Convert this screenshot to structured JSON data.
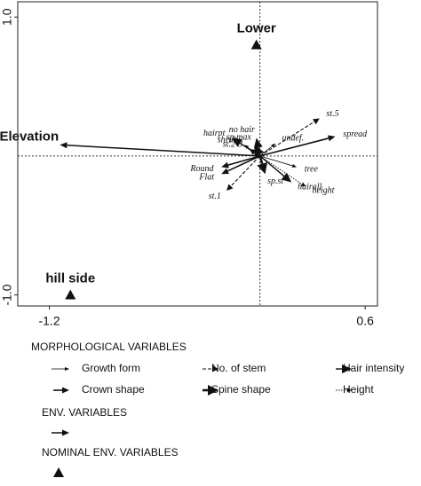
{
  "chart_data": {
    "type": "biplot",
    "xlim": [
      -1.38,
      0.67
    ],
    "ylim": [
      -1.08,
      1.11
    ],
    "xticks": [
      -1.2,
      0.6
    ],
    "yticks": [
      {
        "value": -1,
        "label": "-1.0"
      },
      {
        "value": 1,
        "label": "1.0"
      }
    ],
    "groups": [
      {
        "title": "MORPHOLOGICAL VARIABLES",
        "series": [
          {
            "name": "Growth form",
            "style": "thin",
            "labels": [
              "tree",
              "shrub",
              "undef."
            ],
            "x": [
              0.21,
              -0.09,
              0.09
            ],
            "y": [
              -0.08,
              0.08,
              0.09
            ]
          },
          {
            "name": "No. of stem",
            "style": "dashed",
            "labels": [
              "st.1",
              "st.2-3",
              "st.5"
            ],
            "x": [
              -0.19,
              -0.06,
              0.34
            ],
            "y": [
              -0.25,
              0.05,
              0.27
            ]
          },
          {
            "name": "Hair intensity",
            "style": "hair",
            "labels": [
              "hairpt",
              "hairall",
              "no hair"
            ],
            "x": [
              -0.16,
              0.18,
              -0.02
            ],
            "y": [
              0.13,
              -0.19,
              0.13
            ]
          },
          {
            "name": "Crown shape",
            "style": "crown",
            "labels": [
              "Round",
              "Flat",
              "spread"
            ],
            "x": [
              -0.22,
              -0.22,
              0.43
            ],
            "y": [
              -0.08,
              -0.13,
              0.14
            ]
          },
          {
            "name": "Spine shape",
            "style": "spine",
            "labels": [
              "sp.st",
              "sp.max"
            ],
            "x": [
              0.03,
              -0.03
            ],
            "y": [
              -0.13,
              0.08
            ]
          },
          {
            "name": "Height",
            "style": "dotted",
            "labels": [
              "height"
            ],
            "x": [
              0.26
            ],
            "y": [
              -0.22
            ]
          }
        ]
      },
      {
        "title": "ENV. VARIABLES",
        "series": [
          {
            "style": "env",
            "labels": [
              "Elevation"
            ],
            "x": [
              -1.14
            ],
            "y": [
              0.08
            ]
          }
        ]
      },
      {
        "title": "NOMINAL ENV. VARIABLES",
        "series": [
          {
            "style": "triangle",
            "labels": [
              "Lower",
              "hill side"
            ],
            "x": [
              -0.02,
              -1.08
            ],
            "y": [
              0.8,
              -1.0
            ]
          }
        ]
      }
    ]
  }
}
